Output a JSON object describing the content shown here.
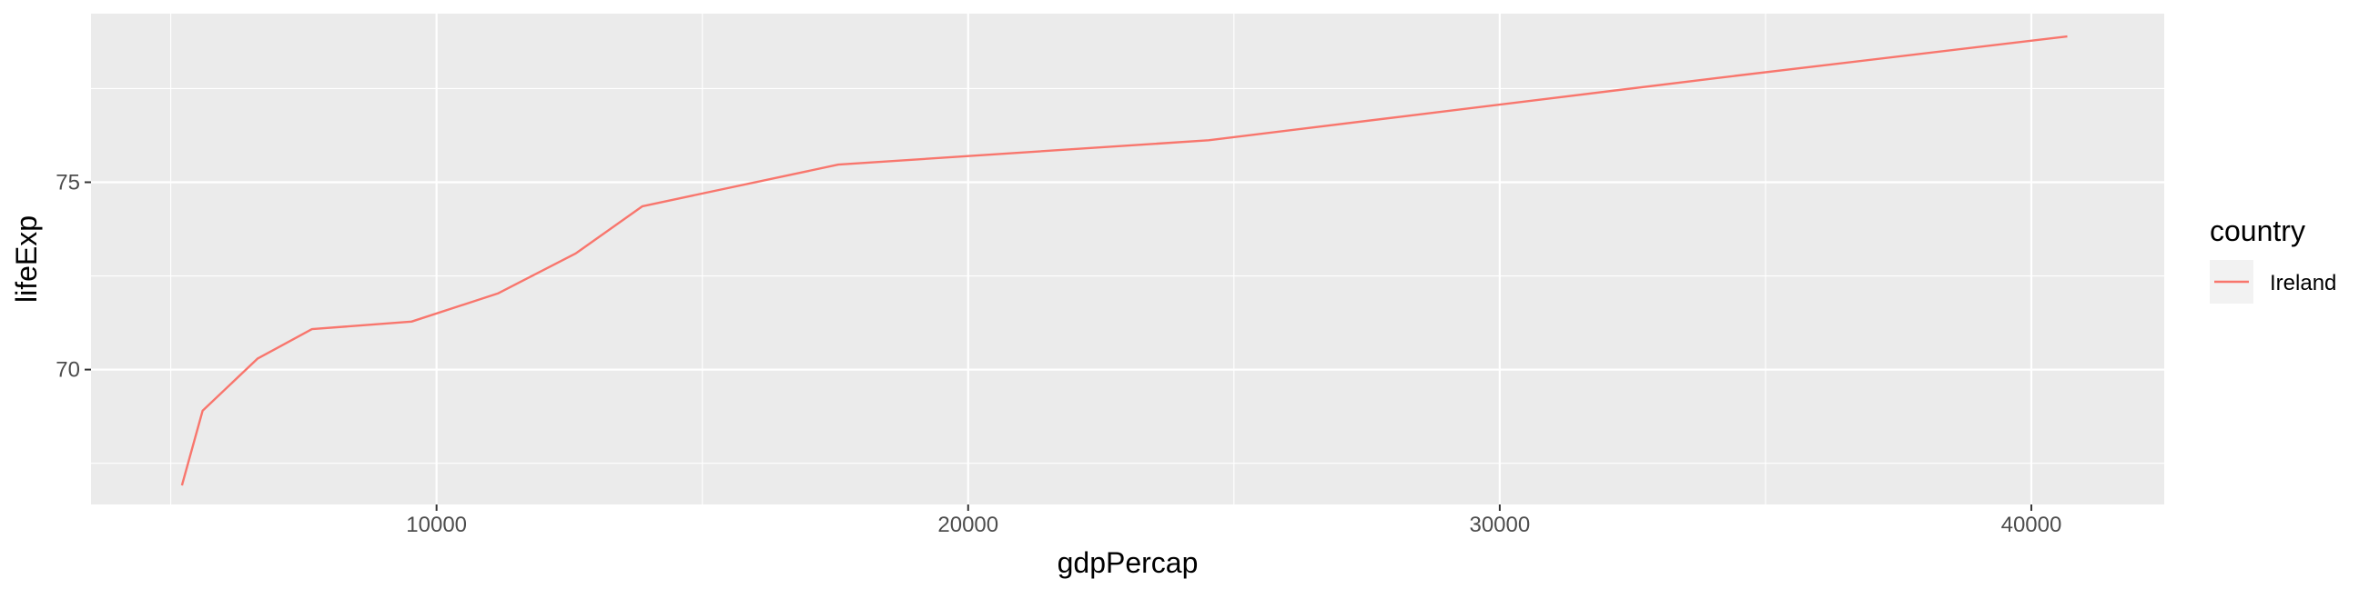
{
  "chart_data": {
    "type": "line",
    "xlabel": "gdpPercap",
    "ylabel": "lifeExp",
    "xlim": [
      3500,
      42500
    ],
    "ylim": [
      66.4,
      79.5
    ],
    "x_ticks": [
      10000,
      20000,
      30000,
      40000
    ],
    "y_ticks": [
      70,
      75
    ],
    "grid": true,
    "legend": {
      "title": "country",
      "position": "right"
    },
    "series": [
      {
        "name": "Ireland",
        "color": "#F8766D",
        "x": [
          5211,
          5599,
          6632,
          7656,
          9530,
          11151,
          12618,
          13873,
          17558,
          24522,
          34077,
          40676
        ],
        "y": [
          66.91,
          68.9,
          70.29,
          71.08,
          71.28,
          72.03,
          73.1,
          74.36,
          75.47,
          76.12,
          77.78,
          78.89
        ]
      }
    ]
  }
}
